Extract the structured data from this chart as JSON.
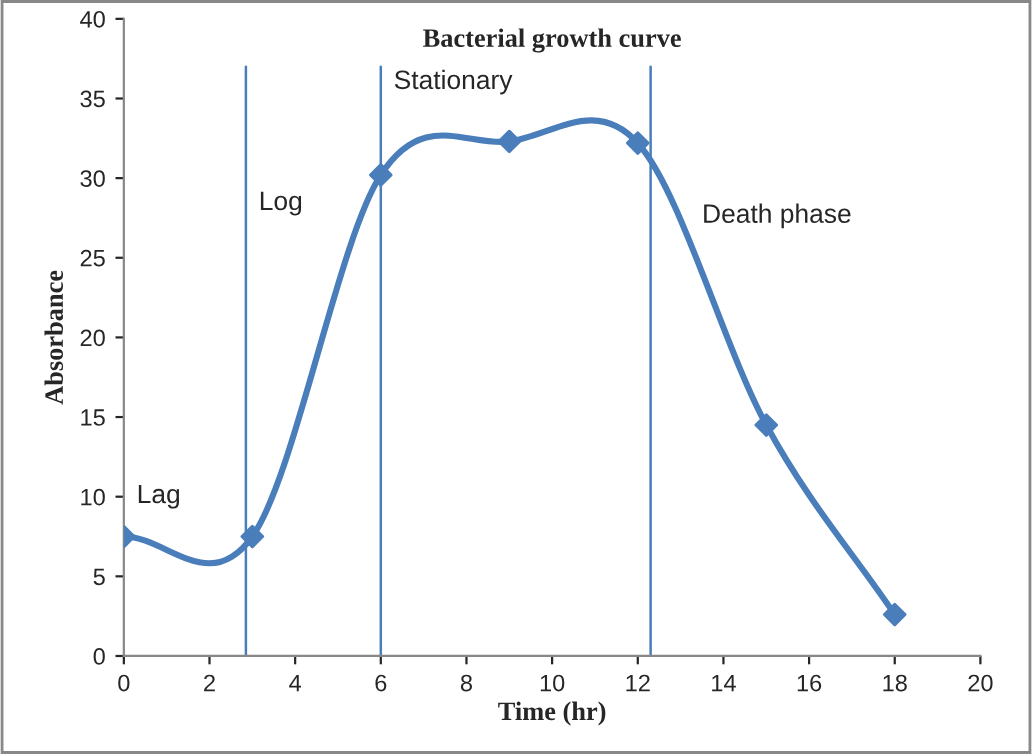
{
  "chart_data": {
    "type": "line",
    "title": "Bacterial growth curve",
    "xlabel": "Time (hr)",
    "ylabel": "Absorbance",
    "x": [
      0,
      3,
      6,
      9,
      12,
      15,
      18
    ],
    "series": [
      {
        "color": "#4a7ebb",
        "values": [
          7.5,
          7.5,
          30.2,
          32.3,
          32.2,
          14.5,
          2.6
        ]
      }
    ],
    "xlim": [
      0,
      20
    ],
    "xticks": [
      0,
      2,
      4,
      6,
      8,
      10,
      12,
      14,
      16,
      18,
      20
    ],
    "ylim": [
      0,
      40
    ],
    "yticks": [
      0,
      5,
      10,
      15,
      20,
      25,
      30,
      35,
      40
    ],
    "ref_lines": [
      {
        "axis": "x",
        "value": 2.85,
        "color": "#4a7ebb"
      },
      {
        "axis": "x",
        "value": 6,
        "color": "#4a7ebb"
      },
      {
        "axis": "x",
        "value": 12.3,
        "color": "#4a7ebb"
      }
    ],
    "annotations": [
      "Lag",
      "Log",
      "Stationary",
      "Death phase"
    ],
    "grid": false,
    "marker": "diamond",
    "legend": false
  }
}
